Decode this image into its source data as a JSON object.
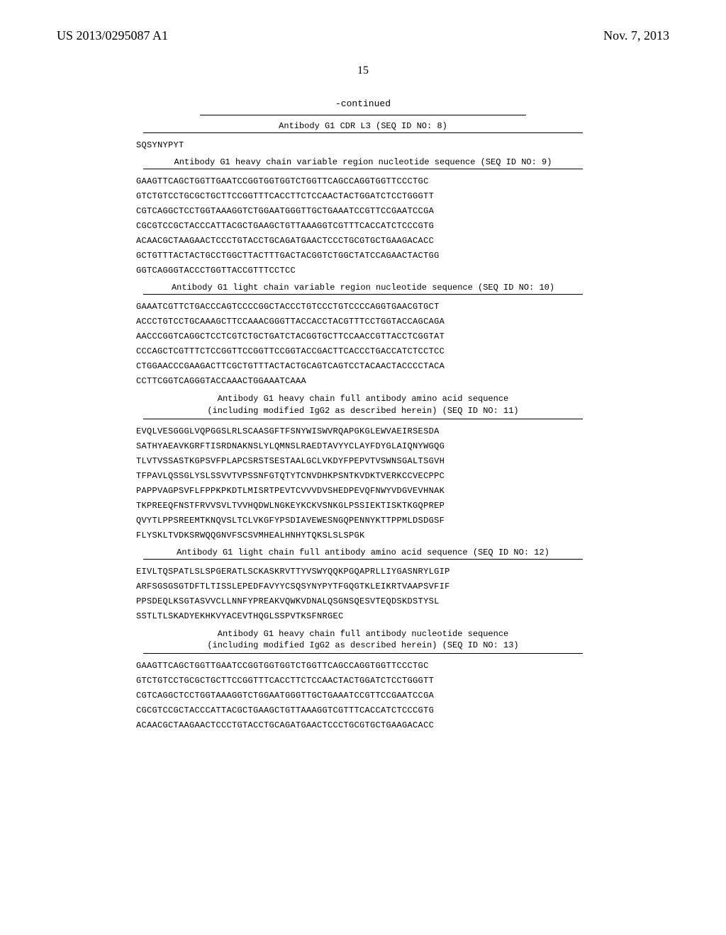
{
  "header": {
    "patent_number": "US 2013/0295087 A1",
    "date": "Nov. 7, 2013",
    "page": "15"
  },
  "continued_label": "-continued",
  "sections": [
    {
      "title": "Antibody G1 CDR L3 (SEQ ID NO: 8)",
      "lines": [
        "SQSYNYPYT"
      ]
    },
    {
      "title": "Antibody G1 heavy chain variable region nucleotide sequence (SEQ ID NO: 9)",
      "lines": [
        "GAAGTTCAGCTGGTTGAATCCGGTGGTGGTCTGGTTCAGCCAGGTGGTTCCCTGC",
        "GTCTGTCCTGCGCTGCTTCCGGTTTCACCTTCTCCAACTACTGGATCTCCTGGGTT",
        "CGTCAGGCTCCTGGTAAAGGTCTGGAATGGGTTGCTGAAATCCGTTCCGAATCCGA",
        "CGCGTCCGCTACCCATTACGCTGAAGCTGTTAAAGGTCGTTTCACCATCTCCCGTG",
        "ACAACGCTAAGAACTCCCTGTACCTGCAGATGAACTCCCTGCGTGCTGAAGACACC",
        "GCTGTTTACTACTGCCTGGCTTACTTTGACTACGGTCTGGCTATCCAGAACTACTGG",
        "GGTCAGGGTACCCTGGTTACCGTTTCCTCC"
      ]
    },
    {
      "title": "Antibody G1 light chain variable region nucleotide sequence (SEQ ID NO: 10)",
      "lines": [
        "GAAATCGTTCTGACCCAGTCCCCGGCTACCCTGTCCCTGTCCCCAGGTGAACGTGCT",
        "ACCCTGTCCTGCAAAGCTTCCAAACGGGTTACCACCTACGTTTCCTGGTACCAGCAGA",
        "AACCCGGTCAGGCTCCTCGTCTGCTGATCTACGGTGCTTCCAACCGTTACCTCGGTAT",
        "CCCAGCTCGTTTCTCCGGTTCCGGTTCCGGTACCGACTTCACCCTGACCATCTCCTCC",
        "CTGGAACCCGAAGACTTCGCTGTTTACTACTGCAGTCAGTCCTACAACTACCCCTACA",
        "CCTTCGGTCAGGGTACCAAACTGGAAATCAAA"
      ]
    },
    {
      "title_lines": [
        "Antibody G1 heavy chain full antibody amino acid sequence",
        "(including modified IgG2 as described herein) (SEQ ID NO: 11)"
      ],
      "lines": [
        "EVQLVESGGGLVQPGGSLRLSCAASGFTFSNYWISWVRQAPGKGLEWVAEIRSESDA",
        "SATHYAEAVKGRFTISRDNAKNSLYLQMNSLRAEDTAVYYCLAYFDYGLAIQNYWGQG",
        "TLVTVSSASTKGPSVFPLAPCSRSTSESTAALGCLVKDYFPEPVTVSWNSGALTSGVH",
        "TFPAVLQSSGLYSLSSVVTVPSSNFGTQTYTCNVDHKPSNTKVDKTVERKCCVECPPC",
        "PAPPVAGPSVFLFPPKPKDTLMISRTPEVTCVVVDVSHEDPEVQFNWYVDGVEVHNAK",
        "TKPREEQFNSTFRVVSVLTVVHQDWLNGKEYKCKVSNKGLPSSIEKTISKTKGQPREP",
        "QVYTLPPSREEMTKNQVSLTCLVKGFYPSDIAVEWESNGQPENNYKTTPPMLDSDGSF",
        "FLYSKLTVDKSRWQQGNVFSCSVMHEALHNHYTQKSLSLSPGK"
      ]
    },
    {
      "title": "Antibody G1 light chain full antibody amino acid sequence (SEQ ID NO: 12)",
      "lines": [
        "EIVLTQSPATLSLSPGERATLSCKASKRVTTYVSWYQQKPGQAPRLLIYGASNRYLGIP",
        "ARFSGSGSGTDFTLTISSLEPEDFAVYYCSQSYNYPYTFGQGTKLEIKRTVAAPSVFIF",
        "PPSDEQLKSGTASVVCLLNNFYPREAKVQWKVDNALQSGNSQESVTEQDSKDSTYSL",
        "SSTLTLSKADYEKHKVYACEVTHQGLSSPVTKSFNRGEC"
      ]
    },
    {
      "title_lines": [
        "Antibody G1 heavy chain full antibody nucleotide sequence",
        "(including modified IgG2 as described herein) (SEQ ID NO: 13)"
      ],
      "lines": [
        "GAAGTTCAGCTGGTTGAATCCGGTGGTGGTCTGGTTCAGCCAGGTGGTTCCCTGC",
        "GTCTGTCCTGCGCTGCTTCCGGTTTCACCTTCTCCAACTACTGGATCTCCTGGGTT",
        "CGTCAGGCTCCTGGTAAAGGTCTGGAATGGGTTGCTGAAATCCGTTCCGAATCCGA",
        "CGCGTCCGCTACCCATTACGCTGAAGCTGTTAAAGGTCGTTTCACCATCTCCCGTG",
        "ACAACGCTAAGAACTCCCTGTACCTGCAGATGAACTCCCTGCGTGCTGAAGACACC"
      ]
    }
  ]
}
